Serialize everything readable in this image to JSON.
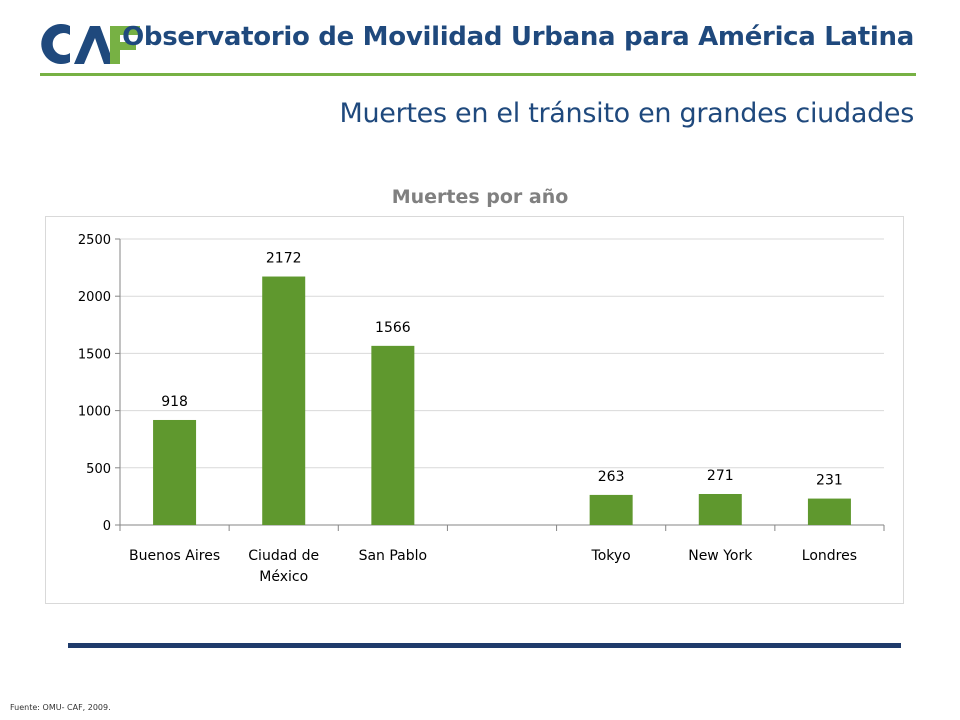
{
  "brand": {
    "logo_text": "CAF",
    "colors": {
      "navy": "#1f497d",
      "green": "#77b144",
      "dark_blue": "#1f3b6b",
      "bar": "#5f982e"
    }
  },
  "header": {
    "title": "Observatorio de Movilidad Urbana para América Latina"
  },
  "slide": {
    "subtitle": "Muertes en el tránsito en grandes ciudades"
  },
  "chart_data": {
    "type": "bar",
    "title": "Muertes por año",
    "categories": [
      [
        "Buenos Aires"
      ],
      [
        "Ciudad de",
        "México"
      ],
      [
        "San Pablo"
      ],
      [
        ""
      ],
      [
        "Tokyo"
      ],
      [
        "New York"
      ],
      [
        "Londres"
      ]
    ],
    "values": [
      918,
      2172,
      1566,
      null,
      263,
      271,
      231
    ],
    "data_labels": [
      "918",
      "2172",
      "1566",
      "",
      "263",
      "271",
      "231"
    ],
    "ylim": [
      0,
      2500
    ],
    "yticks": [
      0,
      500,
      1000,
      1500,
      2000,
      2500
    ],
    "xlabel": "",
    "ylabel": "",
    "grid": true,
    "legend": "none",
    "bar_color": "#5f982e"
  },
  "footer": {
    "source": "Fuente: OMU- CAF, 2009."
  }
}
